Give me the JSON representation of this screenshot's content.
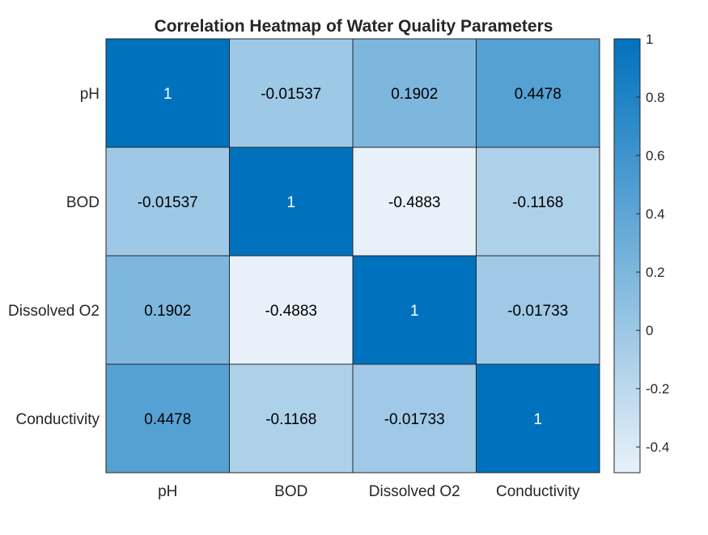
{
  "chart_data": {
    "type": "heatmap",
    "title": "Correlation Heatmap of Water Quality Parameters",
    "xlabel": "",
    "ylabel": "",
    "x_categories": [
      "pH",
      "BOD",
      "Dissolved O2",
      "Conductivity"
    ],
    "y_categories": [
      "pH",
      "BOD",
      "Dissolved O2",
      "Conductivity"
    ],
    "values": [
      [
        1,
        -0.01537,
        0.1902,
        0.4478
      ],
      [
        -0.01537,
        1,
        -0.4883,
        -0.1168
      ],
      [
        0.1902,
        -0.4883,
        1,
        -0.01733
      ],
      [
        0.4478,
        -0.1168,
        -0.01733,
        1
      ]
    ],
    "value_labels": [
      [
        "1",
        "-0.01537",
        "0.1902",
        "0.4478"
      ],
      [
        "-0.01537",
        "1",
        "-0.4883",
        "-0.1168"
      ],
      [
        "0.1902",
        "-0.4883",
        "1",
        "-0.01733"
      ],
      [
        "0.4478",
        "-0.1168",
        "-0.01733",
        "1"
      ]
    ],
    "colorbar": {
      "range": [
        -0.4883,
        1
      ],
      "ticks": [
        1,
        0.8,
        0.6,
        0.4,
        0.2,
        0,
        -0.2,
        -0.4
      ],
      "tick_labels": [
        "1",
        "0.8",
        "0.6",
        "0.4",
        "0.2",
        "0",
        "-0.2",
        "-0.4"
      ],
      "placement": "right"
    },
    "colormap": {
      "low": "#e8f1f9",
      "high": "#0072bd"
    },
    "grid": false
  }
}
